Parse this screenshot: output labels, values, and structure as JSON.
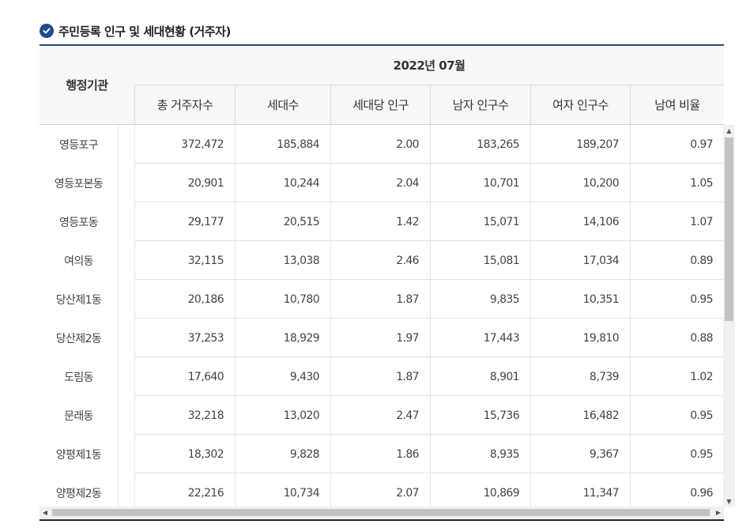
{
  "section": {
    "title": "주민등록 인구 및 세대현황 (거주자)",
    "icon": "check-circle-icon",
    "accent": "#1f4b8e"
  },
  "table": {
    "agency_header": "행정기관",
    "period_header": "2022년 07월",
    "columns": [
      "총 거주자수",
      "세대수",
      "세대당 인구",
      "남자 인구수",
      "여자 인구수",
      "남여 비율"
    ],
    "rows": [
      {
        "name": "영등포구",
        "values": [
          "372,472",
          "185,884",
          "2.00",
          "183,265",
          "189,207",
          "0.97"
        ]
      },
      {
        "name": "영등포본동",
        "values": [
          "20,901",
          "10,244",
          "2.04",
          "10,701",
          "10,200",
          "1.05"
        ]
      },
      {
        "name": "영등포동",
        "values": [
          "29,177",
          "20,515",
          "1.42",
          "15,071",
          "14,106",
          "1.07"
        ]
      },
      {
        "name": "여의동",
        "values": [
          "32,115",
          "13,038",
          "2.46",
          "15,081",
          "17,034",
          "0.89"
        ]
      },
      {
        "name": "당산제1동",
        "values": [
          "20,186",
          "10,780",
          "1.87",
          "9,835",
          "10,351",
          "0.95"
        ]
      },
      {
        "name": "당산제2동",
        "values": [
          "37,253",
          "18,929",
          "1.97",
          "17,443",
          "19,810",
          "0.88"
        ]
      },
      {
        "name": "도림동",
        "values": [
          "17,640",
          "9,430",
          "1.87",
          "8,901",
          "8,739",
          "1.02"
        ]
      },
      {
        "name": "문래동",
        "values": [
          "32,218",
          "13,020",
          "2.47",
          "15,736",
          "16,482",
          "0.95"
        ]
      },
      {
        "name": "양평제1동",
        "values": [
          "18,302",
          "9,828",
          "1.86",
          "8,935",
          "9,367",
          "0.95"
        ]
      },
      {
        "name": "양평제2동",
        "values": [
          "22,216",
          "10,734",
          "2.07",
          "10,869",
          "11,347",
          "0.96"
        ]
      }
    ]
  },
  "scrollbars": {
    "up": "▲",
    "down": "▼",
    "left": "◀",
    "right": "▶"
  }
}
